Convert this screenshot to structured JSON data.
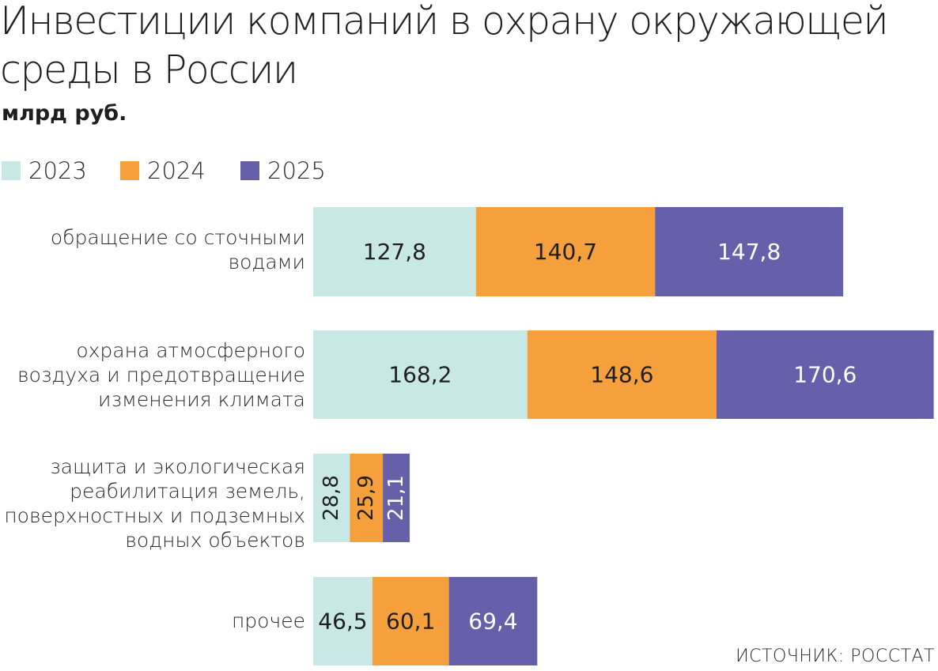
{
  "title": "Инвестиции компаний в охрану окружающей среды в России",
  "subtitle": "млрд руб.",
  "source": "ИСТОЧНИК: РОССТАТ",
  "colors": {
    "2023": "#c8e8e6",
    "2024": "#f5a03c",
    "2025": "#6660ab"
  },
  "legend": [
    {
      "label": "2023",
      "color": "#c8e8e6"
    },
    {
      "label": "2024",
      "color": "#f5a03c"
    },
    {
      "label": "2025",
      "color": "#6660ab"
    }
  ],
  "chart_data": {
    "type": "bar",
    "orientation": "horizontal",
    "stacked": true,
    "title": "Инвестиции компаний в охрану окружающей среды в России",
    "subtitle": "млрд руб.",
    "categories": [
      "обращение со сточными водами",
      "охрана атмосферного воздуха и предотвращение изменения климата",
      "защита и экологическая реабилитация земель, поверхностных и подземных водных объектов",
      "прочее"
    ],
    "series": [
      {
        "name": "2023",
        "values": [
          127.8,
          168.2,
          28.8,
          46.5
        ],
        "labels": [
          "127,8",
          "168,2",
          "28,8",
          "46,5"
        ]
      },
      {
        "name": "2024",
        "values": [
          140.7,
          148.6,
          25.9,
          60.1
        ],
        "labels": [
          "140,7",
          "148,6",
          "25,9",
          "60,1"
        ]
      },
      {
        "name": "2025",
        "values": [
          147.8,
          170.6,
          21.1,
          69.4
        ],
        "labels": [
          "147,8",
          "170,6",
          "21,1",
          "69,4"
        ]
      }
    ],
    "legend_position": "top-left",
    "grid": false
  }
}
